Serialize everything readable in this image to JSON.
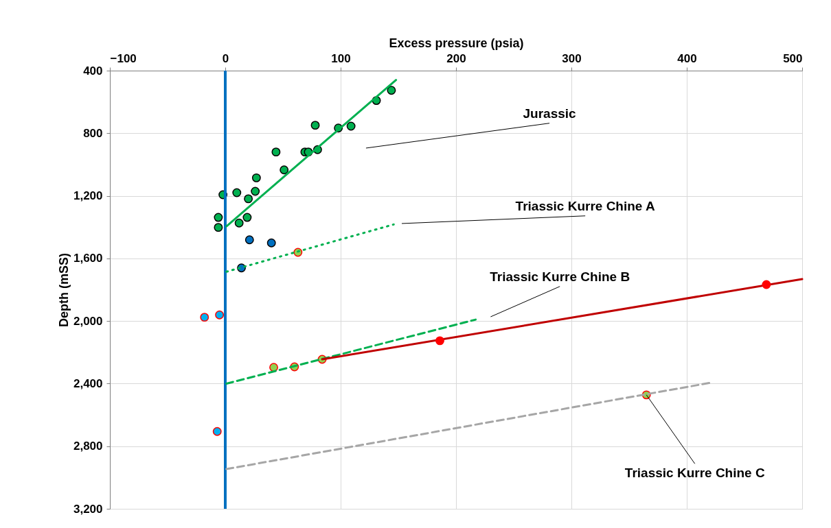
{
  "chart_data": {
    "type": "scatter",
    "xlabel": "Excess pressure (psia)",
    "ylabel": "Depth (mSS)",
    "xlim": [
      -100,
      500
    ],
    "xticks": [
      -100,
      0,
      100,
      200,
      300,
      400,
      500
    ],
    "ylim": [
      3200,
      400
    ],
    "yticks": [
      {
        "value": 400,
        "label": "400"
      },
      {
        "value": 800,
        "label": "800"
      },
      {
        "value": 1200,
        "label": "1,200"
      },
      {
        "value": 1600,
        "label": "1,600"
      },
      {
        "value": 2000,
        "label": "2,000"
      },
      {
        "value": 2400,
        "label": "2,400"
      },
      {
        "value": 2800,
        "label": "2,800"
      },
      {
        "value": 3200,
        "label": "3,200"
      }
    ],
    "grid": true,
    "series": [
      {
        "marker": "circle",
        "color": "#00b050",
        "x": [
          144,
          131,
          78,
          98,
          109,
          44,
          69,
          72,
          80,
          51,
          27,
          26,
          20,
          10,
          -2,
          -6,
          19,
          12,
          -6
        ],
        "values": [
          526,
          591,
          749,
          767,
          755,
          920,
          920,
          920,
          905,
          1034,
          1085,
          1171,
          1219,
          1180,
          1193,
          1338,
          1338,
          1374,
          1402
        ]
      },
      {
        "marker": "circle",
        "color": "#0070c0",
        "x": [
          21,
          40,
          14
        ],
        "values": [
          1481,
          1501,
          1661
        ]
      },
      {
        "marker": "circle",
        "color": "#92d050",
        "x": [
          63,
          42,
          60,
          84,
          365
        ],
        "values": [
          1561,
          2296,
          2293,
          2245,
          2472
        ]
      },
      {
        "marker": "circle",
        "color": "#00b0f0",
        "x": [
          -18,
          -5,
          -7
        ],
        "values": [
          1976,
          1961,
          2706
        ]
      },
      {
        "type": "line",
        "color": "#00b050",
        "line_style": "solid",
        "x": [
          1,
          148
        ],
        "values": [
          1395,
          460
        ]
      },
      {
        "type": "line",
        "color": "#00b050",
        "line_style": "dotted",
        "x": [
          1,
          146
        ],
        "values": [
          1685,
          1383
        ]
      },
      {
        "type": "line",
        "color": "#00b050",
        "line_style": "dashed",
        "x": [
          1,
          217
        ],
        "values": [
          2400,
          1991
        ]
      },
      {
        "type": "line",
        "color": "#c00000",
        "line_style": "solid",
        "x": [
          84,
          500
        ],
        "values": [
          2245,
          1732
        ]
      },
      {
        "type": "line",
        "color": "#a6a6a6",
        "line_style": "dashed",
        "x": [
          1,
          421
        ],
        "values": [
          2946,
          2394
        ]
      },
      {
        "marker": "circle",
        "color": "#ff0000",
        "x": [
          186,
          469
        ],
        "values": [
          2126,
          1767
        ]
      }
    ],
    "ref_lines": [
      {
        "axis": "x",
        "value": 0,
        "color": "#0070c0",
        "line_style": "solid"
      }
    ],
    "annotations": [
      "Jurassic",
      "Triassic Kurre Chine A",
      "Triassic Kurre Chine B",
      {
        "text": "Triassic Kurre Chine C",
        "x": 365,
        "y": 2472
      }
    ]
  }
}
